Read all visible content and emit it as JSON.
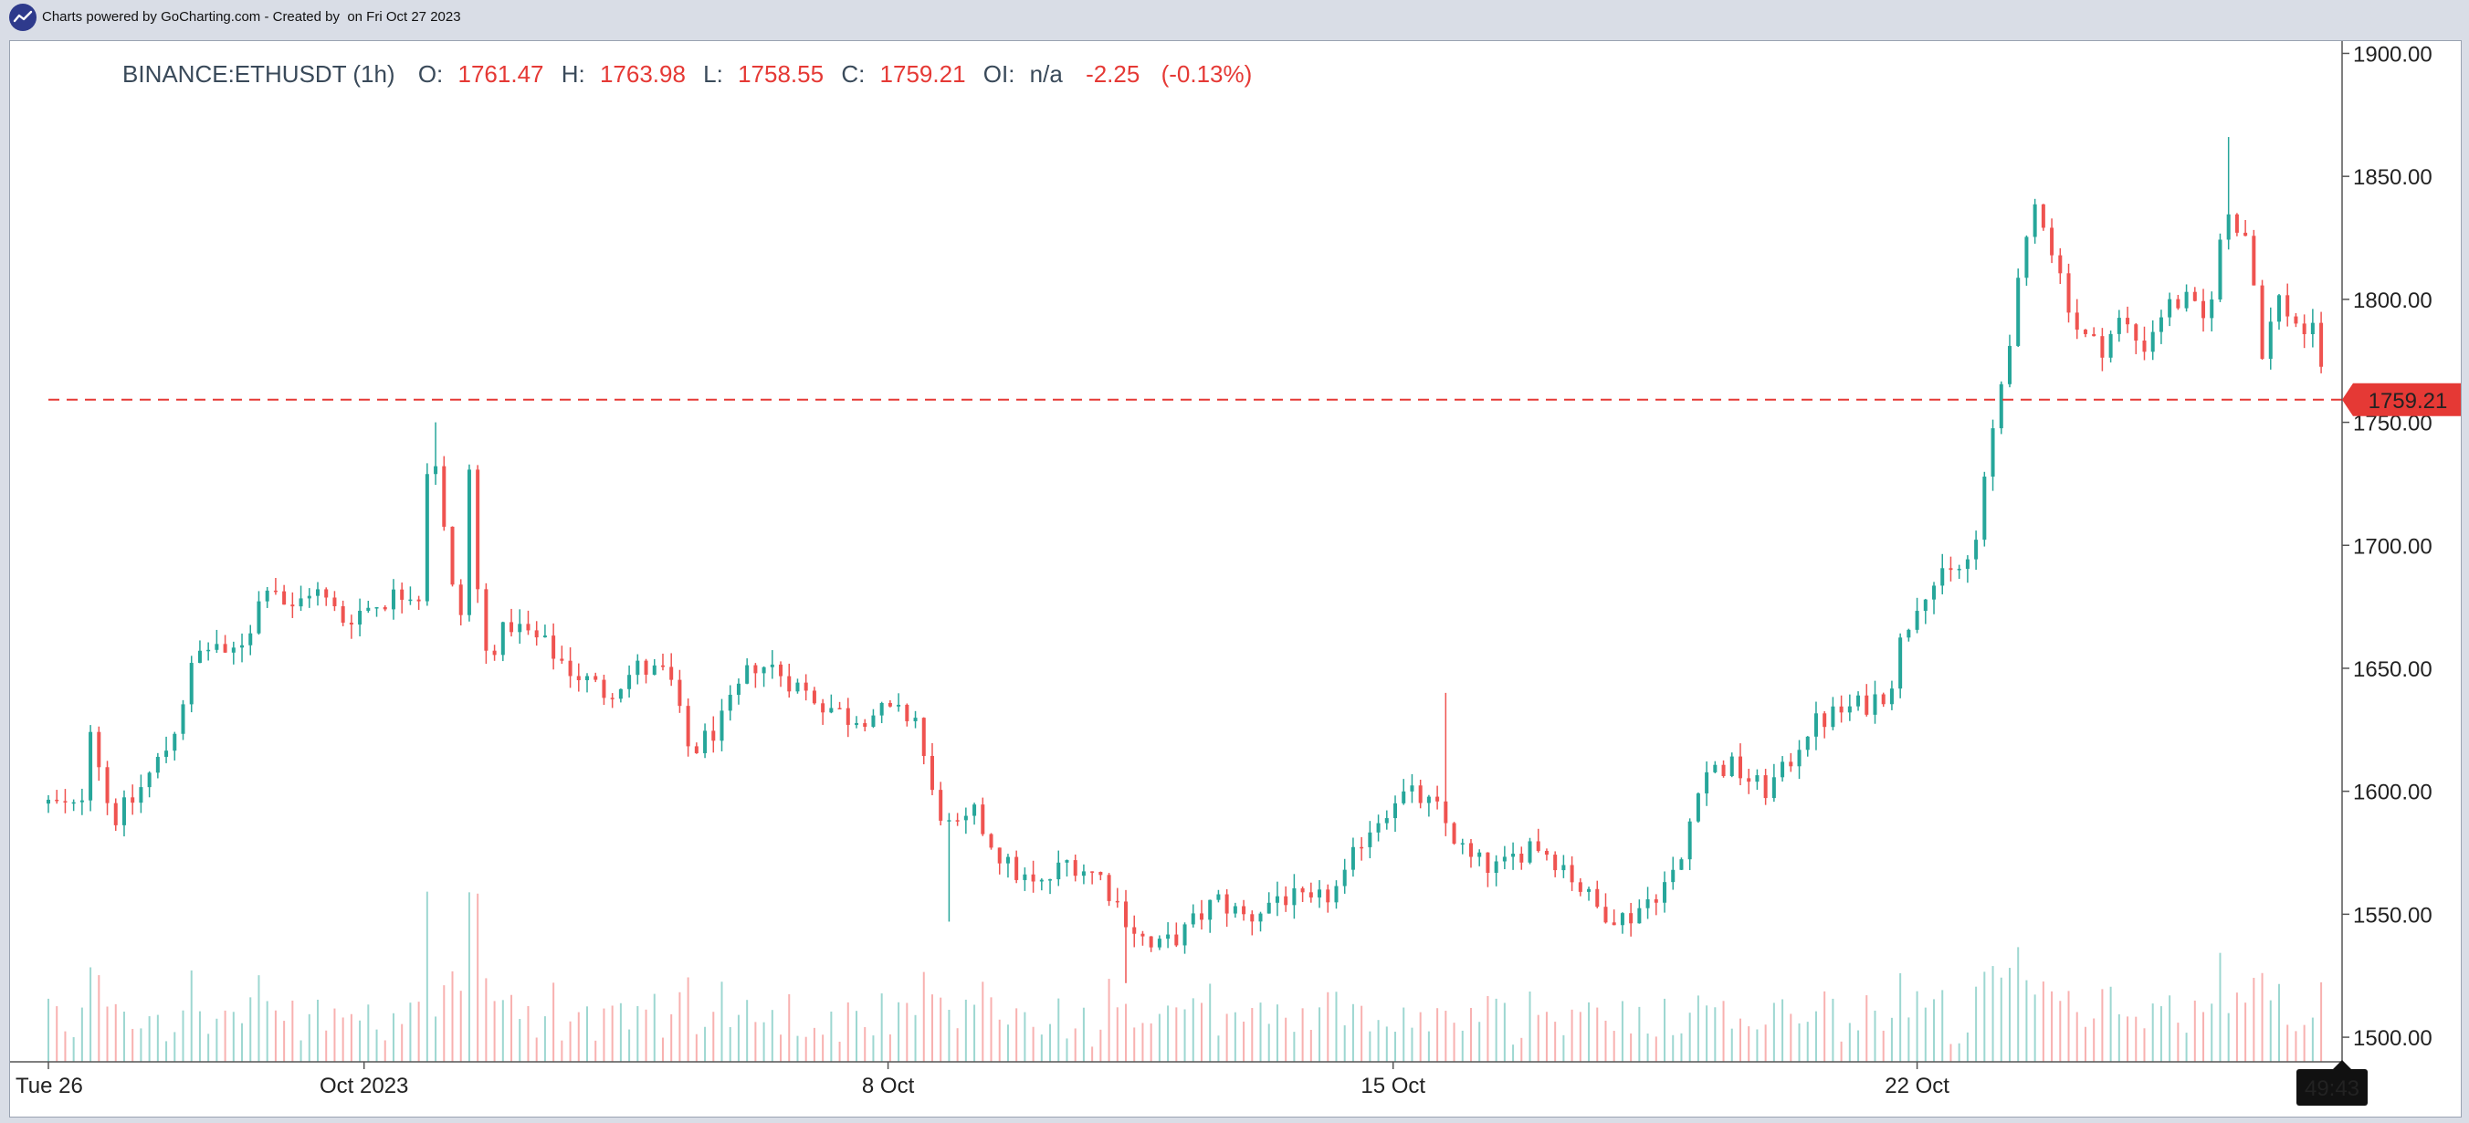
{
  "topbar": {
    "powered": "Charts powered by GoCharting.com - Created by",
    "date": "on Fri Oct 27 2023"
  },
  "colors": {
    "up": "#26a69a",
    "down": "#ef5350",
    "price_line": "#e53935",
    "axis_text": "#222222",
    "countdown_bg": "#111111"
  },
  "chart_data": {
    "type": "candlestick",
    "symbol": "BINANCE:ETHUSDT (1h)",
    "ohlc": {
      "o_label": "O:",
      "o": "1761.47",
      "h_label": "H:",
      "h": "1763.98",
      "l_label": "L:",
      "l": "1758.55",
      "c_label": "C:",
      "c": "1759.21",
      "oi_label": "OI:",
      "oi": "n/a",
      "change": "-2.25",
      "change_pct": "(-0.13%)"
    },
    "last_price": 1759.21,
    "last_price_label": "1759.21",
    "countdown": "49:43",
    "ylim": [
      1490,
      1905
    ],
    "y_ticks": [
      {
        "v": 1500,
        "label": "1500.00"
      },
      {
        "v": 1550,
        "label": "1550.00"
      },
      {
        "v": 1600,
        "label": "1600.00"
      },
      {
        "v": 1650,
        "label": "1650.00"
      },
      {
        "v": 1700,
        "label": "1700.00"
      },
      {
        "v": 1750,
        "label": "1750.00"
      },
      {
        "v": 1800,
        "label": "1800.00"
      },
      {
        "v": 1850,
        "label": "1850.00"
      },
      {
        "v": 1900,
        "label": "1900.00"
      }
    ],
    "x_ticks": [
      {
        "t": 0,
        "label": "Tue 26"
      },
      {
        "t": 150,
        "label": "Oct 2023"
      },
      {
        "t": 399,
        "label": "8 Oct"
      },
      {
        "t": 639,
        "label": "15 Oct"
      },
      {
        "t": 888,
        "label": "22 Oct"
      }
    ],
    "x_range": [
      0,
      1083
    ],
    "price_path": [
      [
        0,
        1595
      ],
      [
        15,
        1592
      ],
      [
        20,
        1628
      ],
      [
        30,
        1588
      ],
      [
        40,
        1596
      ],
      [
        58,
        1620
      ],
      [
        70,
        1655
      ],
      [
        80,
        1660
      ],
      [
        82,
        1650
      ],
      [
        95,
        1665
      ],
      [
        105,
        1688
      ],
      [
        115,
        1672
      ],
      [
        125,
        1683
      ],
      [
        140,
        1670
      ],
      [
        160,
        1678
      ],
      [
        175,
        1675
      ],
      [
        190,
        1686
      ],
      [
        196,
        1672
      ],
      [
        174,
        1675
      ],
      [
        172,
        1682
      ],
      [
        176,
        1680
      ],
      [
        178,
        1730
      ],
      [
        185,
        1735
      ],
      [
        198,
        1730
      ],
      [
        200,
        1730
      ],
      [
        203,
        1690
      ],
      [
        207,
        1655
      ],
      [
        220,
        1668
      ],
      [
        235,
        1660
      ],
      [
        250,
        1648
      ],
      [
        265,
        1640
      ],
      [
        280,
        1650
      ],
      [
        295,
        1647
      ],
      [
        300,
        1630
      ],
      [
        305,
        1615
      ],
      [
        320,
        1628
      ],
      [
        335,
        1652
      ],
      [
        345,
        1650
      ],
      [
        360,
        1640
      ],
      [
        380,
        1630
      ],
      [
        395,
        1632
      ],
      [
        412,
        1630
      ],
      [
        420,
        1598
      ],
      [
        430,
        1582
      ],
      [
        440,
        1590
      ],
      [
        455,
        1570
      ],
      [
        470,
        1560
      ],
      [
        485,
        1572
      ],
      [
        500,
        1565
      ],
      [
        515,
        1545
      ],
      [
        525,
        1535
      ],
      [
        540,
        1543
      ],
      [
        555,
        1556
      ],
      [
        570,
        1548
      ],
      [
        585,
        1558
      ],
      [
        600,
        1553
      ],
      [
        615,
        1562
      ],
      [
        625,
        1583
      ],
      [
        635,
        1592
      ],
      [
        640,
        1598
      ],
      [
        650,
        1598
      ],
      [
        660,
        1592
      ],
      [
        675,
        1572
      ],
      [
        690,
        1568
      ],
      [
        705,
        1580
      ],
      [
        720,
        1570
      ],
      [
        735,
        1553
      ],
      [
        750,
        1548
      ],
      [
        765,
        1560
      ],
      [
        775,
        1568
      ],
      [
        785,
        1608
      ],
      [
        800,
        1610
      ],
      [
        815,
        1600
      ],
      [
        825,
        1608
      ],
      [
        835,
        1625
      ],
      [
        850,
        1632
      ],
      [
        865,
        1636
      ],
      [
        875,
        1642
      ],
      [
        880,
        1660
      ],
      [
        890,
        1682
      ],
      [
        905,
        1688
      ],
      [
        915,
        1696
      ],
      [
        925,
        1752
      ],
      [
        935,
        1800
      ],
      [
        945,
        1842
      ],
      [
        955,
        1812
      ],
      [
        965,
        1786
      ],
      [
        975,
        1780
      ],
      [
        985,
        1792
      ],
      [
        995,
        1780
      ],
      [
        1005,
        1796
      ],
      [
        1015,
        1800
      ],
      [
        1025,
        1790
      ],
      [
        1035,
        1836
      ],
      [
        1045,
        1826
      ],
      [
        1052,
        1780
      ],
      [
        1060,
        1800
      ],
      [
        1070,
        1788
      ],
      [
        1078,
        1785
      ],
      [
        1083,
        1759.21
      ]
    ],
    "notable_wicks": [
      {
        "t": 182,
        "high": 1750
      },
      {
        "t": 427,
        "low": 1547
      },
      {
        "t": 513,
        "low": 1522
      },
      {
        "t": 664,
        "high": 1640
      },
      {
        "t": 1036,
        "high": 1866
      },
      {
        "t": 1083,
        "low": 1748
      }
    ],
    "volume": {
      "max_ratio": 0.09
    }
  }
}
